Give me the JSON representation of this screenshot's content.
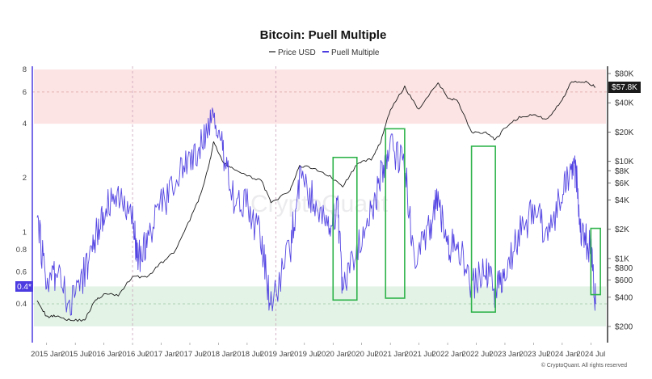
{
  "chart_data": {
    "type": "line",
    "title": "Bitcoin: Puell Multiple",
    "legend": {
      "placement": "top-center",
      "items": [
        "Price USD",
        "Puell Multiple"
      ]
    },
    "colors": {
      "price": "#1a1a1a",
      "puell": "#4b3be0",
      "top_band": "#fde4e4",
      "bottom_band": "#e3f3e6",
      "highlight_box": "#2eb34a",
      "current_label_bg": "#1a1a1a",
      "current_puell_bg": "#4b3be0"
    },
    "x_ticks": [
      "2015 Jan",
      "2015 Jul",
      "2016 Jan",
      "2016 Jul",
      "2017 Jan",
      "2017 Jul",
      "2018 Jan",
      "2018 Jul",
      "2019 Jan",
      "2019 Jul",
      "2020 Jan",
      "2020 Jul",
      "2021 Jan",
      "2021 Jul",
      "2022 Jan",
      "2022 Jul",
      "2023 Jan",
      "2023 Jul",
      "2024 Jan",
      "2024 Jul"
    ],
    "left_axis": {
      "scale": "log",
      "ticks": [
        "8",
        "6",
        "4",
        "2",
        "1",
        "0.8",
        "0.6",
        "0.4"
      ],
      "current_label": "0.4*"
    },
    "right_axis": {
      "scale": "log",
      "ticks": [
        "$80K",
        "$40K",
        "$20K",
        "$10K",
        "$8K",
        "$6K",
        "$4K",
        "$2K",
        "$1K",
        "$800",
        "$600",
        "$400",
        "$200"
      ],
      "current_label": "$57.8K"
    },
    "bands": {
      "overvalued": [
        4,
        8
      ],
      "undervalued": [
        0.3,
        0.5
      ]
    },
    "reference_lines": {
      "dashed_y": [
        6,
        0.4
      ],
      "dashed_x": [
        "2016 Jul",
        "2019 Jan"
      ]
    },
    "series": [
      {
        "name": "Price USD",
        "axis": "right",
        "x": [
          "2014 Nov",
          "2015 Jan",
          "2015 Mar",
          "2015 Jun",
          "2015 Sep",
          "2015 Nov",
          "2016 Jan",
          "2016 Apr",
          "2016 Jul",
          "2016 Oct",
          "2017 Jan",
          "2017 Apr",
          "2017 Jul",
          "2017 Sep",
          "2017 Nov",
          "2017 Dec",
          "2018 Feb",
          "2018 Apr",
          "2018 Jul",
          "2018 Oct",
          "2018 Dec",
          "2019 Apr",
          "2019 Jun",
          "2019 Sep",
          "2019 Dec",
          "2020 Mar",
          "2020 Jun",
          "2020 Sep",
          "2020 Nov",
          "2021 Jan",
          "2021 Apr",
          "2021 Jul",
          "2021 Nov",
          "2022 Jan",
          "2022 Mar",
          "2022 Jun",
          "2022 Sep",
          "2022 Nov",
          "2023 Jan",
          "2023 Apr",
          "2023 Jul",
          "2023 Oct",
          "2024 Jan",
          "2024 Mar",
          "2024 Jun",
          "2024 Aug"
        ],
        "values": [
          380,
          250,
          260,
          230,
          235,
          360,
          430,
          420,
          660,
          640,
          900,
          1200,
          2500,
          4200,
          9000,
          16000,
          9500,
          8500,
          7000,
          6400,
          3700,
          5000,
          9000,
          8500,
          7200,
          5500,
          9300,
          10600,
          16000,
          34000,
          58000,
          34000,
          65000,
          45000,
          43000,
          20000,
          19500,
          16500,
          22000,
          28500,
          30000,
          27000,
          43000,
          67000,
          66000,
          57800
        ]
      },
      {
        "name": "Puell Multiple",
        "axis": "left",
        "x": [
          "2014 Nov",
          "2015 Jan",
          "2015 Mar",
          "2015 Jun",
          "2015 Sep",
          "2015 Nov",
          "2016 Jan",
          "2016 Apr",
          "2016 Jul",
          "2016 Aug",
          "2016 Oct",
          "2017 Jan",
          "2017 Apr",
          "2017 Jul",
          "2017 Oct",
          "2017 Dec",
          "2018 Feb",
          "2018 Apr",
          "2018 Jul",
          "2018 Oct",
          "2018 Dec",
          "2019 Apr",
          "2019 Jun",
          "2019 Sep",
          "2019 Dec",
          "2020 Feb",
          "2020 Mar",
          "2020 Jun",
          "2020 Sep",
          "2020 Nov",
          "2021 Jan",
          "2021 Apr",
          "2021 Jun",
          "2021 Sep",
          "2021 Nov",
          "2022 Jan",
          "2022 Mar",
          "2022 Jun",
          "2022 Sep",
          "2022 Nov",
          "2023 Jan",
          "2023 Apr",
          "2023 Jul",
          "2023 Oct",
          "2024 Jan",
          "2024 Mar",
          "2024 Apr",
          "2024 May",
          "2024 Jul",
          "2024 Aug"
        ],
        "values": [
          1.2,
          0.5,
          0.6,
          0.4,
          0.6,
          0.9,
          1.3,
          1.7,
          1.3,
          0.7,
          0.9,
          1.4,
          1.9,
          2.5,
          3.2,
          4.5,
          2.7,
          1.6,
          1.4,
          0.9,
          0.38,
          0.8,
          2.0,
          1.5,
          1.1,
          1.3,
          0.5,
          0.8,
          1.3,
          2.0,
          3.0,
          2.4,
          0.7,
          1.0,
          1.6,
          0.8,
          0.9,
          0.5,
          0.6,
          0.45,
          0.6,
          1.0,
          1.3,
          1.0,
          1.6,
          2.5,
          2.0,
          1.0,
          0.8,
          0.4
        ]
      }
    ],
    "highlight_boxes": [
      {
        "x_start": "2020 Jan",
        "x_end": "2020 Jun",
        "y_top": 2.6,
        "y_bottom": 0.42
      },
      {
        "x_start": "2020 Dec",
        "x_end": "2021 Apr",
        "y_top": 3.75,
        "y_bottom": 0.43
      },
      {
        "x_start": "2022 Jun",
        "x_end": "2022 Nov",
        "y_top": 3.0,
        "y_bottom": 0.36
      },
      {
        "x_start": "2024 Jul",
        "x_end": "2024 Sep",
        "y_top": 1.05,
        "y_bottom": 0.45
      }
    ],
    "watermark": "CryptoQuant",
    "credit": "© CryptoQuant. All rights reserved"
  }
}
